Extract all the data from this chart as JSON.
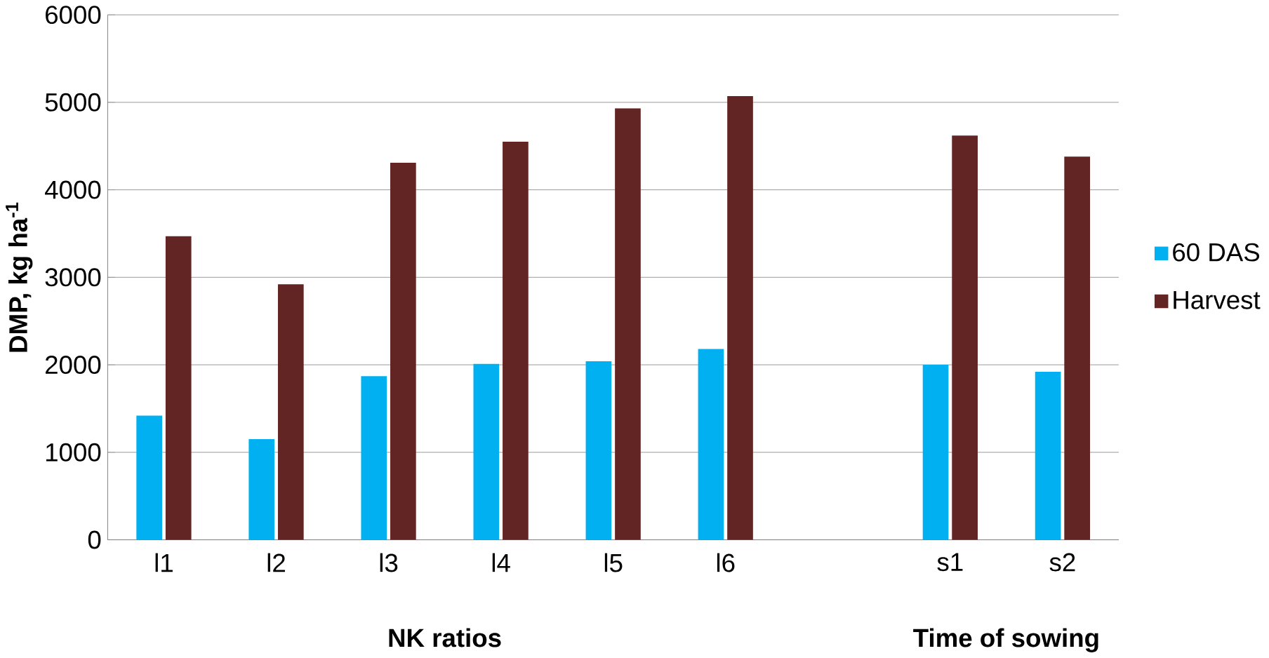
{
  "chart_data": {
    "type": "bar",
    "ylabel": "DMP, kg ha$^{-1}$",
    "categories": [
      "l1",
      "l2",
      "l3",
      "l4",
      "l5",
      "l6",
      null,
      "s1",
      "s2"
    ],
    "series": [
      {
        "name": "60 DAS",
        "color": "#00b0f0",
        "values": [
          1420,
          1150,
          1870,
          2010,
          2040,
          2180,
          null,
          2000,
          1920
        ]
      },
      {
        "name": "Harvest",
        "color": "#632523",
        "values": [
          3470,
          2920,
          4310,
          4550,
          4930,
          5070,
          null,
          4620,
          4380
        ]
      }
    ],
    "ylim": [
      0,
      6000
    ],
    "yticks": [
      0,
      1000,
      2000,
      3000,
      4000,
      5000,
      6000
    ],
    "grid": "y",
    "legend": "right",
    "annotations": [
      "NK ratios",
      "Time of sowing"
    ]
  }
}
